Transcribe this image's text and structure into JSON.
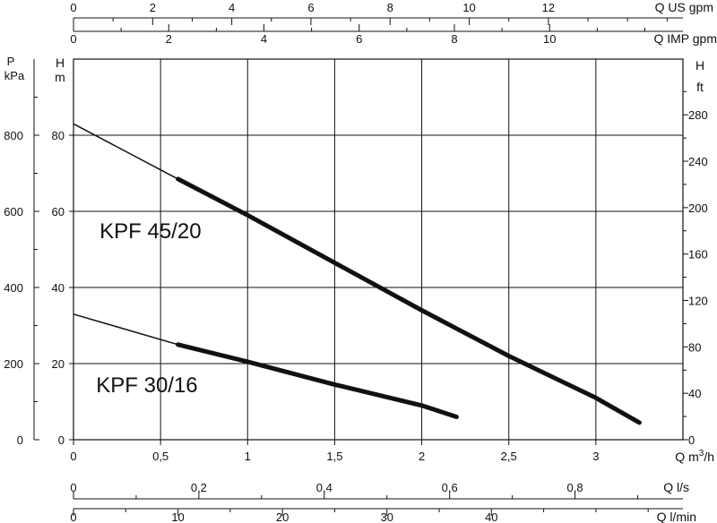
{
  "chart_data": {
    "type": "line",
    "title": "",
    "grid": true,
    "x": {
      "label": "Q m³/h",
      "range": [
        0,
        3.5
      ],
      "ticks": [
        0,
        0.5,
        1,
        1.5,
        2,
        2.5,
        3
      ],
      "tick_labels": [
        "0",
        "0,5",
        "1",
        "1,5",
        "2",
        "2,5",
        "3"
      ]
    },
    "y_left_head": {
      "label": "H m",
      "range": [
        0,
        100
      ],
      "ticks": [
        0,
        20,
        40,
        60,
        80
      ]
    },
    "y_left_pressure": {
      "label": "P kPa",
      "range": [
        0,
        1000
      ],
      "ticks": [
        0,
        200,
        400,
        600,
        800
      ]
    },
    "y_right": {
      "label": "H ft",
      "range": [
        0,
        328
      ],
      "ticks": [
        0,
        40,
        80,
        120,
        160,
        200,
        240,
        280
      ]
    },
    "top_axes": [
      {
        "label": "Q US gpm",
        "range": [
          0,
          15.4
        ],
        "major": [
          0,
          2,
          4,
          6,
          8,
          10,
          12
        ],
        "minor": [
          1,
          3,
          5,
          7,
          9,
          11,
          13,
          14,
          15
        ]
      },
      {
        "label": "Q IMP gpm",
        "range": [
          0,
          12.8
        ],
        "major": [
          0,
          2,
          4,
          6,
          8,
          10
        ],
        "minor": [
          1,
          3,
          5,
          7,
          9,
          11,
          12
        ]
      }
    ],
    "bottom_axes": [
      {
        "label": "Q l/s",
        "range": [
          0,
          0.9722
        ],
        "major": [
          0,
          0.2,
          0.4,
          0.6,
          0.8
        ],
        "minor": [
          0.1,
          0.3,
          0.5,
          0.7,
          0.9
        ],
        "major_labels": [
          "0",
          "0,2",
          "0,4",
          "0,6",
          "0,8"
        ]
      },
      {
        "label": "Q l/min",
        "range": [
          0,
          58.33
        ],
        "major": [
          0,
          10,
          20,
          30,
          40
        ],
        "minor": [
          5,
          15,
          25,
          35,
          45,
          50,
          55
        ]
      }
    ],
    "series": [
      {
        "name": "KPF 45/20",
        "points": [
          [
            0,
            83
          ],
          [
            0.6,
            68.5
          ],
          [
            1,
            59
          ],
          [
            1.5,
            46.5
          ],
          [
            2,
            34
          ],
          [
            2.5,
            22
          ],
          [
            3,
            11
          ],
          [
            3.25,
            4.5
          ]
        ],
        "thin_until_x": 0.6,
        "label_at": [
          0.15,
          53
        ]
      },
      {
        "name": "KPF 30/16",
        "points": [
          [
            0,
            33
          ],
          [
            0.6,
            25
          ],
          [
            1,
            20.5
          ],
          [
            1.5,
            14.5
          ],
          [
            2,
            9
          ],
          [
            2.2,
            6
          ]
        ],
        "thin_until_x": 0.6,
        "label_at": [
          0.13,
          12.5
        ]
      }
    ]
  }
}
